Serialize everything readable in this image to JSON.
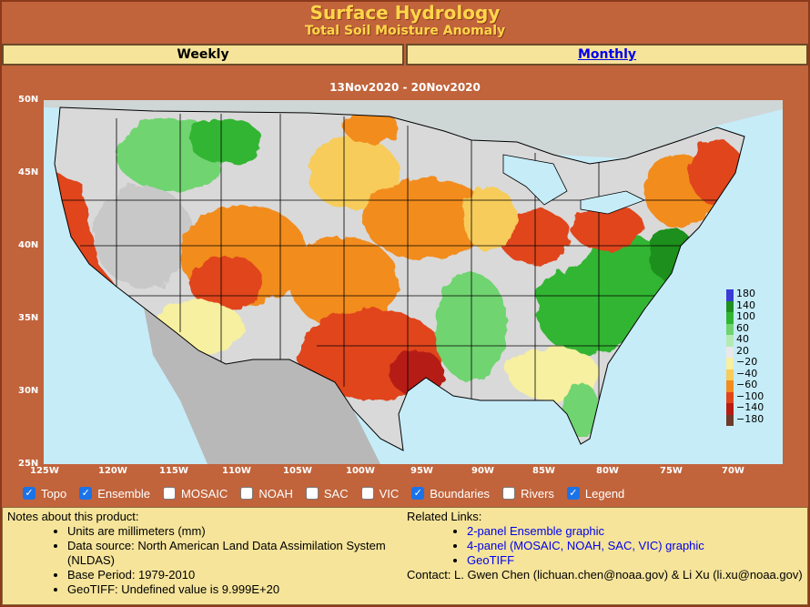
{
  "header": {
    "title": "Surface Hydrology",
    "subtitle": "Total Soil Moisture Anomaly"
  },
  "tabs": [
    {
      "label": "Weekly",
      "active": true
    },
    {
      "label": "Monthly",
      "active": false
    }
  ],
  "map": {
    "date_range": "13Nov2020 - 20Nov2020",
    "lat_labels": [
      "50N",
      "45N",
      "40N",
      "35N",
      "30N",
      "25N"
    ],
    "lon_labels": [
      "125W",
      "120W",
      "115W",
      "110W",
      "105W",
      "100W",
      "95W",
      "90W",
      "85W",
      "80W",
      "75W",
      "70W"
    ],
    "legend": [
      {
        "label": "180",
        "color": "#3b3bd6"
      },
      {
        "label": "140",
        "color": "#1f8f1f"
      },
      {
        "label": "100",
        "color": "#31b531"
      },
      {
        "label": "60",
        "color": "#6fd46f"
      },
      {
        "label": "40",
        "color": "#b5eab5"
      },
      {
        "label": "20",
        "color": "#e8e8e8"
      },
      {
        "label": "−20",
        "color": "#f6f0a0"
      },
      {
        "label": "−40",
        "color": "#f7cc5a"
      },
      {
        "label": "−60",
        "color": "#f28c1e"
      },
      {
        "label": "−100",
        "color": "#e0441a"
      },
      {
        "label": "−140",
        "color": "#b61c12"
      },
      {
        "label": "−180",
        "color": "#6e3a2a"
      }
    ],
    "colors": {
      "ocean": "#c6ecf8",
      "land_neutral": "#d9d9d9",
      "dry": "#f28c1e",
      "very_dry": "#e0441a",
      "wet": "#31b531"
    }
  },
  "layers": [
    {
      "label": "Topo",
      "checked": true
    },
    {
      "label": "Ensemble",
      "checked": true
    },
    {
      "label": "MOSAIC",
      "checked": false
    },
    {
      "label": "NOAH",
      "checked": false
    },
    {
      "label": "SAC",
      "checked": false
    },
    {
      "label": "VIC",
      "checked": false
    },
    {
      "label": "Boundaries",
      "checked": true
    },
    {
      "label": "Rivers",
      "checked": false
    },
    {
      "label": "Legend",
      "checked": true
    }
  ],
  "notes": {
    "heading": "Notes about this product:",
    "items": [
      "Units are millimeters (mm)",
      "Data source: North American Land Data Assimilation System (NLDAS)",
      "Base Period: 1979-2010",
      "GeoTIFF: Undefined value is 9.999E+20"
    ]
  },
  "related": {
    "heading": "Related Links:",
    "links": [
      "2-panel Ensemble graphic",
      "4-panel (MOSAIC, NOAH, SAC, VIC) graphic",
      "GeoTIFF"
    ],
    "contact": "Contact: L. Gwen Chen (lichuan.chen@noaa.gov) & Li Xu (li.xu@noaa.gov)"
  }
}
